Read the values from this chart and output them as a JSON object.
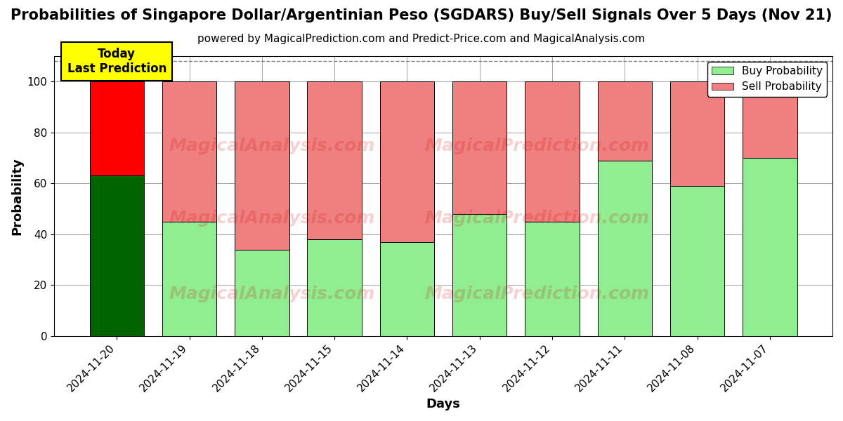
{
  "title": "Probabilities of Singapore Dollar/Argentinian Peso (SGDARS) Buy/Sell Signals Over 5 Days (Nov 21)",
  "subtitle": "powered by MagicalPrediction.com and Predict-Price.com and MagicalAnalysis.com",
  "xlabel": "Days",
  "ylabel": "Probability",
  "categories": [
    "2024-11-20",
    "2024-11-19",
    "2024-11-18",
    "2024-11-15",
    "2024-11-14",
    "2024-11-13",
    "2024-11-12",
    "2024-11-11",
    "2024-11-08",
    "2024-11-07"
  ],
  "buy_values": [
    63,
    45,
    34,
    38,
    37,
    48,
    45,
    69,
    59,
    70
  ],
  "sell_values": [
    37,
    55,
    66,
    62,
    63,
    52,
    55,
    31,
    41,
    30
  ],
  "buy_color_today": "#006400",
  "sell_color_today": "#FF0000",
  "buy_color_other": "#90EE90",
  "sell_color_other": "#F08080",
  "today_annotation": "Today\nLast Prediction",
  "today_annotation_bg": "#FFFF00",
  "ylim_max": 110,
  "yticks": [
    0,
    20,
    40,
    60,
    80,
    100
  ],
  "dashed_line_y": 108,
  "watermark_left": "MagicalAnalysis.com",
  "watermark_right": "MagicalPrediction.com",
  "watermark_bottom": "MagicalPrediction.com",
  "legend_buy_label": "Buy Probability",
  "legend_sell_label": "Sell Probability",
  "title_fontsize": 15,
  "subtitle_fontsize": 11,
  "axis_label_fontsize": 13,
  "tick_fontsize": 11,
  "bar_width": 0.75
}
